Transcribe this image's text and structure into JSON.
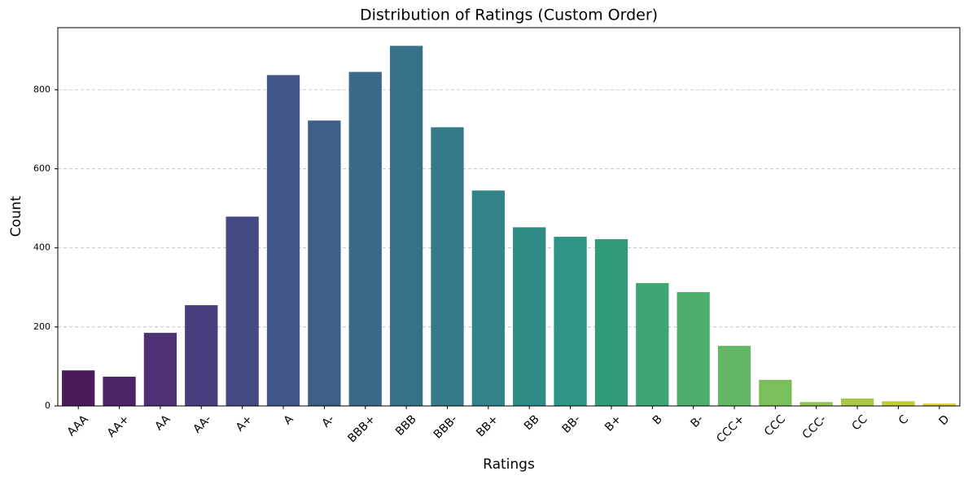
{
  "chart_data": {
    "type": "bar",
    "title": "Distribution of Ratings (Custom Order)",
    "x_label": "Ratings",
    "y_label": "Count",
    "categories": [
      "AAA",
      "AA+",
      "AA",
      "AA-",
      "A+",
      "A",
      "A-",
      "BBB+",
      "BBB",
      "BBB-",
      "BB+",
      "BB",
      "BB-",
      "B+",
      "B",
      "B-",
      "CCC+",
      "CCC",
      "CCC-",
      "CC",
      "C",
      "D"
    ],
    "values": [
      90,
      74,
      185,
      255,
      479,
      837,
      722,
      845,
      911,
      705,
      545,
      452,
      428,
      422,
      311,
      288,
      152,
      66,
      10,
      19,
      12,
      6
    ],
    "colors": [
      "#4a1a5a",
      "#4c2467",
      "#4e3175",
      "#4a3d7d",
      "#464a83",
      "#415586",
      "#3d5f88",
      "#3a6989",
      "#377189",
      "#347a89",
      "#318388",
      "#2f8b86",
      "#2e9483",
      "#329b7c",
      "#3ea574",
      "#4fae6d",
      "#64b765",
      "#7bbf5d",
      "#93c451",
      "#abc749",
      "#c0c941",
      "#d4cc3b"
    ],
    "ylim": [
      0,
      957
    ],
    "yticks": [
      0,
      200,
      400,
      600,
      800
    ],
    "grid": true
  }
}
